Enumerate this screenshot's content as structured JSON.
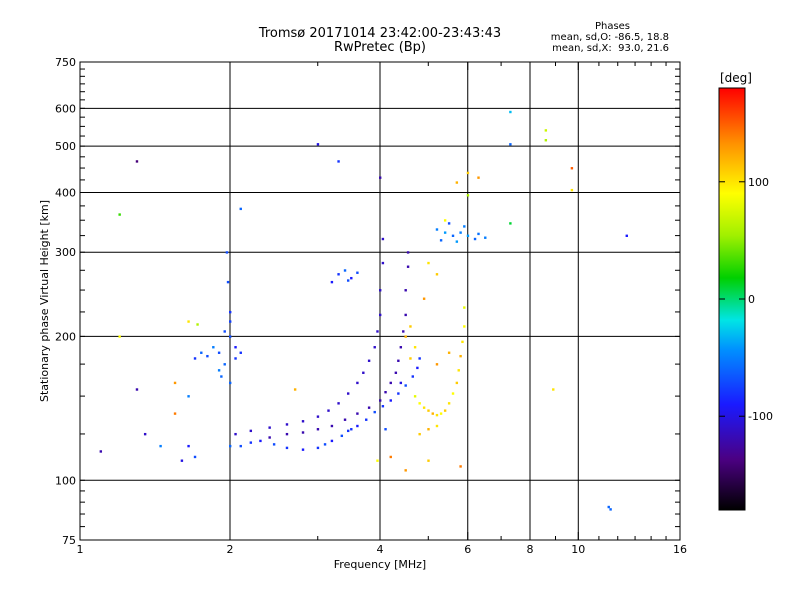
{
  "chart_data": {
    "type": "scatter",
    "title": "Tromsø 20171014 23:42:00-23:43:43",
    "subtitle": "RwPretec (Bp)",
    "xlabel": "Frequency [MHz]",
    "ylabel": "Stationary phase Virtual Height [km]",
    "x_scale": "log",
    "y_scale": "log",
    "xlim": [
      1,
      16
    ],
    "ylim": [
      75,
      750
    ],
    "x_ticks": [
      1,
      2,
      4,
      6,
      8,
      10,
      16
    ],
    "x_tick_labels": [
      "1",
      "2",
      "4",
      "6",
      "8",
      "10",
      "16"
    ],
    "x_gridlines": [
      2,
      4,
      6,
      8,
      10
    ],
    "y_ticks": [
      75,
      100,
      200,
      300,
      400,
      500,
      600,
      750
    ],
    "y_tick_labels": [
      "75",
      "100",
      "200",
      "300",
      "400",
      "500",
      "600",
      "750"
    ],
    "y_gridlines": [
      100,
      200,
      300,
      400,
      500,
      600
    ],
    "grid": true,
    "stats": {
      "heading": "Phases",
      "line_o": "mean, sd,O: -86.5, 18.8",
      "line_x": "mean, sd,X:  93.0, 21.6"
    },
    "colorbar": {
      "label": "[deg]",
      "range": [
        -180,
        180
      ],
      "ticks": [
        100,
        0,
        -100
      ],
      "tick_labels": [
        "100",
        "0",
        "-100"
      ]
    },
    "series": [
      {
        "values": [
          [
            2.0,
            118,
            -60
          ],
          [
            2.1,
            118,
            -70
          ],
          [
            2.2,
            120,
            -80
          ],
          [
            2.3,
            121,
            -90
          ],
          [
            2.45,
            119,
            -70
          ],
          [
            2.6,
            117,
            -80
          ],
          [
            2.8,
            116,
            -90
          ],
          [
            3.0,
            117,
            -80
          ],
          [
            3.1,
            119,
            -70
          ],
          [
            3.2,
            121,
            -90
          ],
          [
            3.35,
            124,
            -70
          ],
          [
            3.45,
            127,
            -80
          ],
          [
            3.6,
            130,
            -90
          ],
          [
            3.75,
            134,
            -80
          ],
          [
            3.9,
            139,
            -70
          ],
          [
            4.05,
            143,
            -80
          ],
          [
            4.2,
            147,
            -90
          ],
          [
            4.35,
            152,
            -80
          ],
          [
            4.5,
            158,
            -70
          ],
          [
            4.65,
            165,
            -80
          ],
          [
            4.75,
            172,
            -90
          ],
          [
            4.8,
            180,
            -80
          ]
        ]
      },
      {
        "values": [
          [
            2.05,
            125,
            -110
          ],
          [
            2.2,
            127,
            -110
          ],
          [
            2.4,
            129,
            -110
          ],
          [
            2.6,
            131,
            -110
          ],
          [
            2.8,
            133,
            -110
          ],
          [
            3.0,
            136,
            -110
          ],
          [
            3.15,
            140,
            -110
          ],
          [
            3.3,
            145,
            -110
          ],
          [
            3.45,
            152,
            -110
          ],
          [
            3.6,
            160,
            -110
          ],
          [
            3.7,
            168,
            -110
          ],
          [
            3.8,
            178,
            -110
          ],
          [
            3.9,
            190,
            -110
          ],
          [
            3.95,
            205,
            -110
          ],
          [
            4.0,
            222,
            -110
          ],
          [
            4.0,
            250,
            -110
          ],
          [
            4.05,
            285,
            -110
          ],
          [
            4.05,
            320,
            -110
          ]
        ]
      },
      {
        "values": [
          [
            2.4,
            123,
            -120
          ],
          [
            2.6,
            125,
            -120
          ],
          [
            2.8,
            126,
            -120
          ],
          [
            3.0,
            128,
            -120
          ],
          [
            3.2,
            130,
            -120
          ],
          [
            3.4,
            134,
            -120
          ],
          [
            3.6,
            138,
            -120
          ],
          [
            3.8,
            142,
            -120
          ],
          [
            4.0,
            147,
            -120
          ],
          [
            4.1,
            153,
            -120
          ],
          [
            4.2,
            160,
            -120
          ],
          [
            4.3,
            168,
            -120
          ],
          [
            4.35,
            178,
            -120
          ],
          [
            4.4,
            190,
            -120
          ],
          [
            4.45,
            205,
            -120
          ],
          [
            4.5,
            222,
            -120
          ],
          [
            4.5,
            250,
            -120
          ],
          [
            4.55,
            280,
            -120
          ],
          [
            4.55,
            300,
            -120
          ]
        ]
      },
      {
        "values": [
          [
            4.7,
            150,
            80
          ],
          [
            4.8,
            145,
            90
          ],
          [
            4.9,
            142,
            100
          ],
          [
            5.0,
            140,
            110
          ],
          [
            5.1,
            138,
            120
          ],
          [
            5.2,
            137,
            100
          ],
          [
            5.3,
            138,
            90
          ],
          [
            5.4,
            140,
            110
          ],
          [
            5.5,
            145,
            100
          ],
          [
            5.6,
            152,
            90
          ],
          [
            5.7,
            160,
            110
          ],
          [
            5.75,
            170,
            100
          ],
          [
            5.8,
            182,
            120
          ],
          [
            5.85,
            195,
            100
          ],
          [
            5.9,
            210,
            90
          ],
          [
            5.9,
            230,
            80
          ],
          [
            4.8,
            125,
            110
          ],
          [
            5.0,
            128,
            120
          ],
          [
            5.2,
            130,
            100
          ],
          [
            4.6,
            180,
            110
          ],
          [
            4.7,
            190,
            100
          ],
          [
            4.5,
            200,
            120
          ],
          [
            4.6,
            210,
            110
          ],
          [
            5.2,
            175,
            130
          ],
          [
            5.5,
            185,
            120
          ]
        ]
      },
      {
        "values": [
          [
            1.9,
            185,
            -70
          ],
          [
            1.95,
            175,
            -60
          ],
          [
            2.0,
            200,
            -70
          ],
          [
            2.05,
            180,
            -80
          ],
          [
            1.9,
            170,
            -50
          ],
          [
            2.0,
            160,
            -60
          ],
          [
            2.05,
            190,
            -90
          ],
          [
            1.95,
            205,
            -70
          ],
          [
            2.0,
            225,
            -80
          ],
          [
            1.98,
            260,
            -70
          ],
          [
            1.97,
            300,
            -70
          ],
          [
            1.85,
            190,
            -50
          ],
          [
            2.1,
            185,
            -80
          ],
          [
            1.92,
            165,
            -60
          ],
          [
            2.0,
            215,
            -75
          ]
        ]
      },
      {
        "values": [
          [
            5.2,
            335,
            -50
          ],
          [
            5.4,
            330,
            -40
          ],
          [
            5.6,
            325,
            -60
          ],
          [
            5.8,
            330,
            -50
          ],
          [
            6.0,
            325,
            -40
          ],
          [
            6.2,
            320,
            -60
          ],
          [
            6.5,
            322,
            -50
          ],
          [
            5.5,
            345,
            -70
          ],
          [
            5.9,
            340,
            -50
          ],
          [
            5.3,
            318,
            -60
          ],
          [
            5.7,
            316,
            -40
          ],
          [
            6.3,
            328,
            -55
          ]
        ]
      },
      {
        "values": [
          [
            3.3,
            270,
            -80
          ],
          [
            3.4,
            275,
            -60
          ],
          [
            3.5,
            265,
            -90
          ],
          [
            3.6,
            272,
            -70
          ],
          [
            3.2,
            260,
            -90
          ],
          [
            3.45,
            262,
            -70
          ]
        ]
      },
      {
        "values": [
          [
            1.3,
            465,
            -140
          ],
          [
            3.0,
            505,
            -100
          ],
          [
            3.3,
            465,
            -80
          ],
          [
            4.0,
            430,
            -120
          ],
          [
            2.1,
            370,
            -60
          ],
          [
            1.2,
            360,
            30
          ],
          [
            12.5,
            325,
            -90
          ],
          [
            11.5,
            88,
            -60
          ],
          [
            11.6,
            87,
            -60
          ],
          [
            7.3,
            345,
            10
          ],
          [
            7.3,
            505,
            -60
          ],
          [
            7.3,
            590,
            -30
          ],
          [
            8.6,
            540,
            70
          ],
          [
            8.6,
            515,
            60
          ],
          [
            9.7,
            450,
            150
          ],
          [
            9.7,
            405,
            100
          ],
          [
            6.3,
            430,
            130
          ],
          [
            6.0,
            440,
            110
          ],
          [
            5.7,
            420,
            120
          ],
          [
            5.4,
            350,
            90
          ],
          [
            5.2,
            270,
            110
          ],
          [
            5.0,
            285,
            100
          ],
          [
            6.0,
            395,
            60
          ],
          [
            4.9,
            240,
            130
          ],
          [
            1.65,
            150,
            -50
          ],
          [
            1.45,
            118,
            -50
          ],
          [
            1.1,
            115,
            -120
          ],
          [
            1.55,
            160,
            130
          ],
          [
            1.65,
            215,
            100
          ],
          [
            1.72,
            212,
            60
          ],
          [
            1.75,
            185,
            -60
          ],
          [
            1.8,
            182,
            -70
          ],
          [
            1.7,
            180,
            -80
          ],
          [
            1.65,
            118,
            -90
          ],
          [
            1.6,
            110,
            -100
          ],
          [
            1.7,
            112,
            -70
          ],
          [
            1.3,
            155,
            -120
          ],
          [
            1.55,
            138,
            140
          ],
          [
            1.2,
            200,
            90
          ],
          [
            1.35,
            125,
            -110
          ],
          [
            2.7,
            155,
            120
          ],
          [
            4.5,
            105,
            130
          ],
          [
            5.0,
            110,
            110
          ],
          [
            3.95,
            110,
            90
          ],
          [
            4.2,
            112,
            140
          ],
          [
            8.9,
            155,
            100
          ],
          [
            5.8,
            107,
            140
          ],
          [
            4.4,
            160,
            -100
          ],
          [
            4.1,
            128,
            -70
          ],
          [
            3.5,
            128,
            -80
          ]
        ]
      }
    ]
  }
}
